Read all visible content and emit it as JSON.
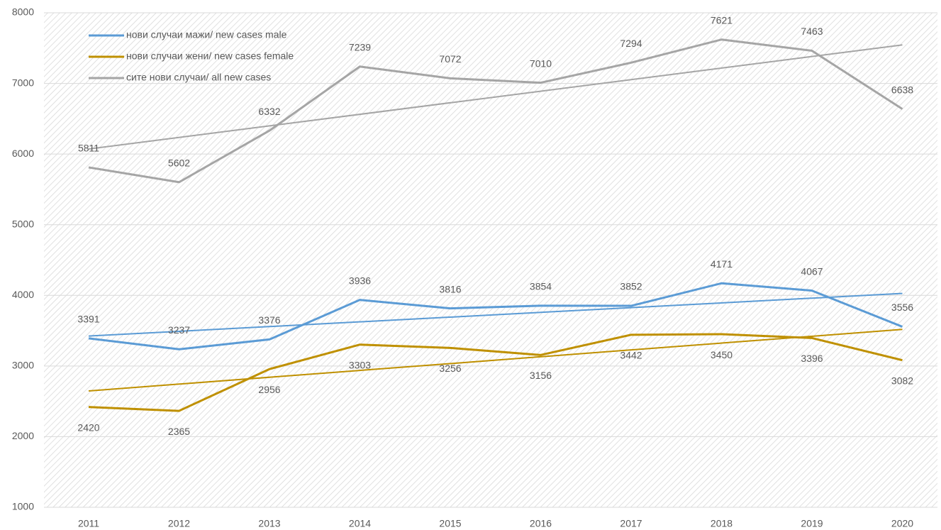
{
  "chart_data": {
    "type": "line",
    "categories": [
      "2011",
      "2012",
      "2013",
      "2014",
      "2015",
      "2016",
      "2017",
      "2018",
      "2019",
      "2020"
    ],
    "series": [
      {
        "name": "нови случаи мажи/ new cases male",
        "color": "#5b9bd5",
        "values": [
          3391,
          3237,
          3376,
          3936,
          3816,
          3854,
          3852,
          4171,
          4067,
          3556
        ]
      },
      {
        "name": "нови случаи жени/ new cases female",
        "color": "#bf9000",
        "values": [
          2420,
          2365,
          2956,
          3303,
          3256,
          3156,
          3442,
          3450,
          3396,
          3082
        ]
      },
      {
        "name": "сите нови случаи/ all new cases",
        "color": "#a5a5a5",
        "values": [
          5811,
          5602,
          6332,
          7239,
          7072,
          7010,
          7294,
          7621,
          7463,
          6638
        ]
      }
    ],
    "ylim": [
      1000,
      8000
    ],
    "yticks": [
      1000,
      2000,
      3000,
      4000,
      5000,
      6000,
      7000,
      8000
    ],
    "grid": true,
    "trendline": "linear",
    "legend": "upper left"
  }
}
